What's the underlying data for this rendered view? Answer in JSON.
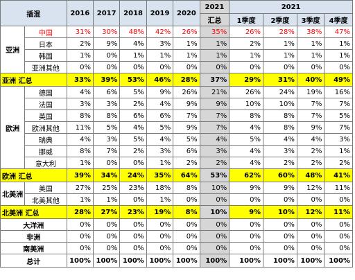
{
  "header": {
    "corner": "插混",
    "years": [
      "2016",
      "2017",
      "2018",
      "2019",
      "2020"
    ],
    "y2021_total_top": "2021",
    "y2021_total_bottom": "汇总",
    "y2021_quarters_title": "2021",
    "quarters": [
      "1季度",
      "2季度",
      "3季度",
      "4季度"
    ]
  },
  "rows": [
    {
      "group": "亚洲",
      "label": "中国",
      "values": [
        "31%",
        "30%",
        "48%",
        "42%",
        "26%",
        "35%",
        "26%",
        "28%",
        "38%",
        "47%"
      ],
      "red": true
    },
    {
      "group": "",
      "label": "日本",
      "values": [
        "2%",
        "9%",
        "4%",
        "3%",
        "1%",
        "1%",
        "2%",
        "1%",
        "1%",
        "1%"
      ]
    },
    {
      "group": "",
      "label": "韩国",
      "values": [
        "1%",
        "0%",
        "1%",
        "1%",
        "1%",
        "1%",
        "1%",
        "1%",
        "1%",
        "1%"
      ]
    },
    {
      "group": "",
      "label": "亚洲其他",
      "values": [
        "0%",
        "0%",
        "0%",
        "0%",
        "0%",
        "0%",
        "0%",
        "0%",
        "0%",
        "0%"
      ]
    },
    {
      "sum": true,
      "label": "亚洲 汇总",
      "values": [
        "33%",
        "39%",
        "53%",
        "46%",
        "28%",
        "37%",
        "29%",
        "31%",
        "40%",
        "49%"
      ]
    },
    {
      "group": "欧洲",
      "label": "德国",
      "values": [
        "4%",
        "6%",
        "5%",
        "9%",
        "26%",
        "21%",
        "26%",
        "24%",
        "19%",
        "16%"
      ]
    },
    {
      "group": "",
      "label": "法国",
      "values": [
        "3%",
        "3%",
        "2%",
        "4%",
        "9%",
        "9%",
        "10%",
        "10%",
        "7%",
        "7%"
      ]
    },
    {
      "group": "",
      "label": "英国",
      "values": [
        "8%",
        "8%",
        "6%",
        "6%",
        "7%",
        "7%",
        "8%",
        "8%",
        "7%",
        "5%"
      ]
    },
    {
      "group": "",
      "label": "欧洲其他",
      "values": [
        "11%",
        "5%",
        "4%",
        "5%",
        "9%",
        "7%",
        "4%",
        "8%",
        "9%",
        "7%"
      ]
    },
    {
      "group": "",
      "label": "瑞典",
      "values": [
        "4%",
        "3%",
        "5%",
        "4%",
        "5%",
        "4%",
        "5%",
        "4%",
        "4%",
        "3%"
      ]
    },
    {
      "group": "",
      "label": "挪威",
      "values": [
        "8%",
        "7%",
        "2%",
        "3%",
        "6%",
        "3%",
        "4%",
        "3%",
        "2%",
        "1%"
      ]
    },
    {
      "group": "",
      "label": "意大利",
      "values": [
        "1%",
        "0%",
        "0%",
        "1%",
        "2%",
        "2%",
        "4%",
        "2%",
        "2%",
        "2%"
      ]
    },
    {
      "sum": true,
      "label": "欧洲 汇总",
      "values": [
        "39%",
        "34%",
        "24%",
        "35%",
        "64%",
        "53%",
        "62%",
        "60%",
        "48%",
        "41%"
      ]
    },
    {
      "group": "北美洲",
      "label": "美国",
      "values": [
        "27%",
        "25%",
        "23%",
        "18%",
        "8%",
        "10%",
        "9%",
        "9%",
        "12%",
        "11%"
      ]
    },
    {
      "group": "",
      "label": "北美其他",
      "values": [
        "1%",
        "1%",
        "0%",
        "1%",
        "0%",
        "0%",
        "0%",
        "0%",
        "0%",
        "0%"
      ]
    },
    {
      "sum": true,
      "label": "北美洲 汇总",
      "values": [
        "28%",
        "27%",
        "23%",
        "19%",
        "8%",
        "10%",
        "9%",
        "10%",
        "12%",
        "11%"
      ]
    },
    {
      "region": true,
      "label": "大洋洲",
      "values": [
        "0%",
        "0%",
        "0%",
        "0%",
        "0%",
        "0%",
        "0%",
        "0%",
        "0%",
        "0%"
      ]
    },
    {
      "region": true,
      "label": "非洲",
      "values": [
        "0%",
        "0%",
        "0%",
        "0%",
        "0%",
        "0%",
        "0%",
        "0%",
        "0%",
        "0%"
      ]
    },
    {
      "region": true,
      "label": "南美洲",
      "values": [
        "0%",
        "0%",
        "0%",
        "0%",
        "0%",
        "0%",
        "0%",
        "0%",
        "0%",
        "0%"
      ]
    },
    {
      "total": true,
      "label": "总计",
      "values": [
        "100%",
        "100%",
        "100%",
        "100%",
        "100%",
        "100%",
        "100%",
        "100%",
        "100%",
        "100%"
      ]
    }
  ],
  "colors": {
    "header_bg": "#d9e3f0",
    "sum_bg": "#ffff00",
    "highlight_col_bg": "#d6d6d6",
    "china_text": "#ff0000"
  }
}
